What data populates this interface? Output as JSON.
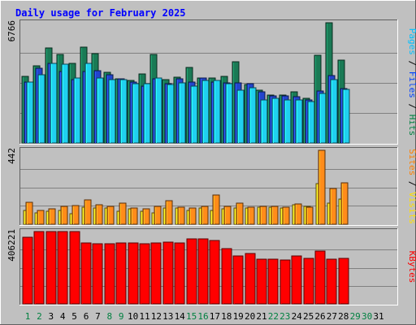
{
  "chart_data": [
    {
      "type": "bar",
      "title": "Daily usage for February 2025",
      "categories": [
        "1",
        "2",
        "3",
        "4",
        "5",
        "6",
        "7",
        "8",
        "9",
        "10",
        "11",
        "12",
        "13",
        "14",
        "15",
        "16",
        "17",
        "18",
        "19",
        "20",
        "21",
        "22",
        "23",
        "24",
        "25",
        "26",
        "27",
        "28",
        "29",
        "30",
        "31"
      ],
      "category_colors": [
        "#008040",
        "#008040",
        "#000000",
        "#000000",
        "#000000",
        "#000000",
        "#000000",
        "#008040",
        "#008040",
        "#000000",
        "#000000",
        "#000000",
        "#000000",
        "#000000",
        "#008040",
        "#008040",
        "#000000",
        "#000000",
        "#000000",
        "#000000",
        "#000000",
        "#008040",
        "#008040",
        "#000000",
        "#000000",
        "#000000",
        "#000000",
        "#000000",
        "#008040",
        "#008040",
        "#000000"
      ],
      "panels": [
        {
          "name": "pages_files_hits",
          "ymax_label": "6766",
          "ylim": [
            0,
            6766
          ],
          "right_label": [
            {
              "text": "Pages",
              "color": "#00c0ff"
            },
            {
              "text": " / ",
              "color": "#000000"
            },
            {
              "text": "Files",
              "color": "#0040ff"
            },
            {
              "text": " / ",
              "color": "#000000"
            },
            {
              "text": "Hits",
              "color": "#008040"
            }
          ],
          "series": [
            {
              "name": "Hits",
              "color": "#1a7a55",
              "values": [
                3750,
                4325,
                5350,
                4980,
                4460,
                5410,
                5030,
                3990,
                3590,
                3520,
                3890,
                4990,
                3570,
                3720,
                4250,
                3650,
                3650,
                3730,
                4560,
                3300,
                2970,
                2720,
                2720,
                2880,
                2530,
                4950,
                6766,
                4680
              ]
            },
            {
              "name": "Files",
              "color": "#2244cc",
              "values": [
                3450,
                4190,
                4480,
                4010,
                3560,
                4020,
                4060,
                3850,
                3620,
                3430,
                3210,
                3620,
                3320,
                3600,
                3420,
                3650,
                3450,
                3390,
                3380,
                3360,
                2870,
                2660,
                2650,
                2620,
                2440,
                2910,
                3800,
                3070
              ]
            },
            {
              "name": "Pages",
              "color": "#20d0f0",
              "values": [
                3450,
                3830,
                4480,
                4420,
                3680,
                4490,
                3680,
                3570,
                3560,
                3320,
                3350,
                3680,
                3270,
                3390,
                3180,
                3540,
                3510,
                3360,
                2990,
                3130,
                2440,
                2530,
                2440,
                2440,
                2320,
                2770,
                3570,
                3010
              ]
            }
          ]
        },
        {
          "name": "sites_visits",
          "ymax_label": "442",
          "ylim": [
            0,
            442
          ],
          "right_label": [
            {
              "text": "Sites",
              "color": "#ff8000"
            },
            {
              "text": " / ",
              "color": "#000000"
            },
            {
              "text": "Visits",
              "color": "#ffe000"
            }
          ],
          "series": [
            {
              "name": "Visits",
              "color": "#ffe020",
              "values": [
                85,
                70,
                80,
                85,
                65,
                100,
                95,
                95,
                80,
                90,
                80,
                70,
                95,
                95,
                85,
                95,
                85,
                90,
                95,
                95,
                100,
                100,
                95,
                115,
                105,
                245,
                125,
                150
              ]
            },
            {
              "name": "Sites",
              "color": "#ff8c1a",
              "values": [
                130,
                85,
                90,
                105,
                110,
                145,
                115,
                105,
                125,
                95,
                90,
                105,
                140,
                100,
                95,
                105,
                175,
                105,
                125,
                100,
                105,
                105,
                100,
                120,
                100,
                442,
                215,
                250
              ]
            }
          ]
        },
        {
          "name": "kbytes",
          "ymax_label": "406221",
          "ylim": [
            0,
            406221
          ],
          "right_label": [
            {
              "text": "KBytes",
              "color": "#ff0000"
            }
          ],
          "series": [
            {
              "name": "KBytes",
              "color": "#ff0000",
              "values": [
                373000,
                404000,
                406221,
                406221,
                406221,
                344000,
                340000,
                340000,
                342000,
                344000,
                338000,
                344000,
                346000,
                344000,
                364000,
                364000,
                354000,
                310000,
                270000,
                284000,
                250000,
                252000,
                248000,
                270000,
                256000,
                298000,
                252000,
                254000
              ]
            }
          ]
        }
      ]
    }
  ]
}
